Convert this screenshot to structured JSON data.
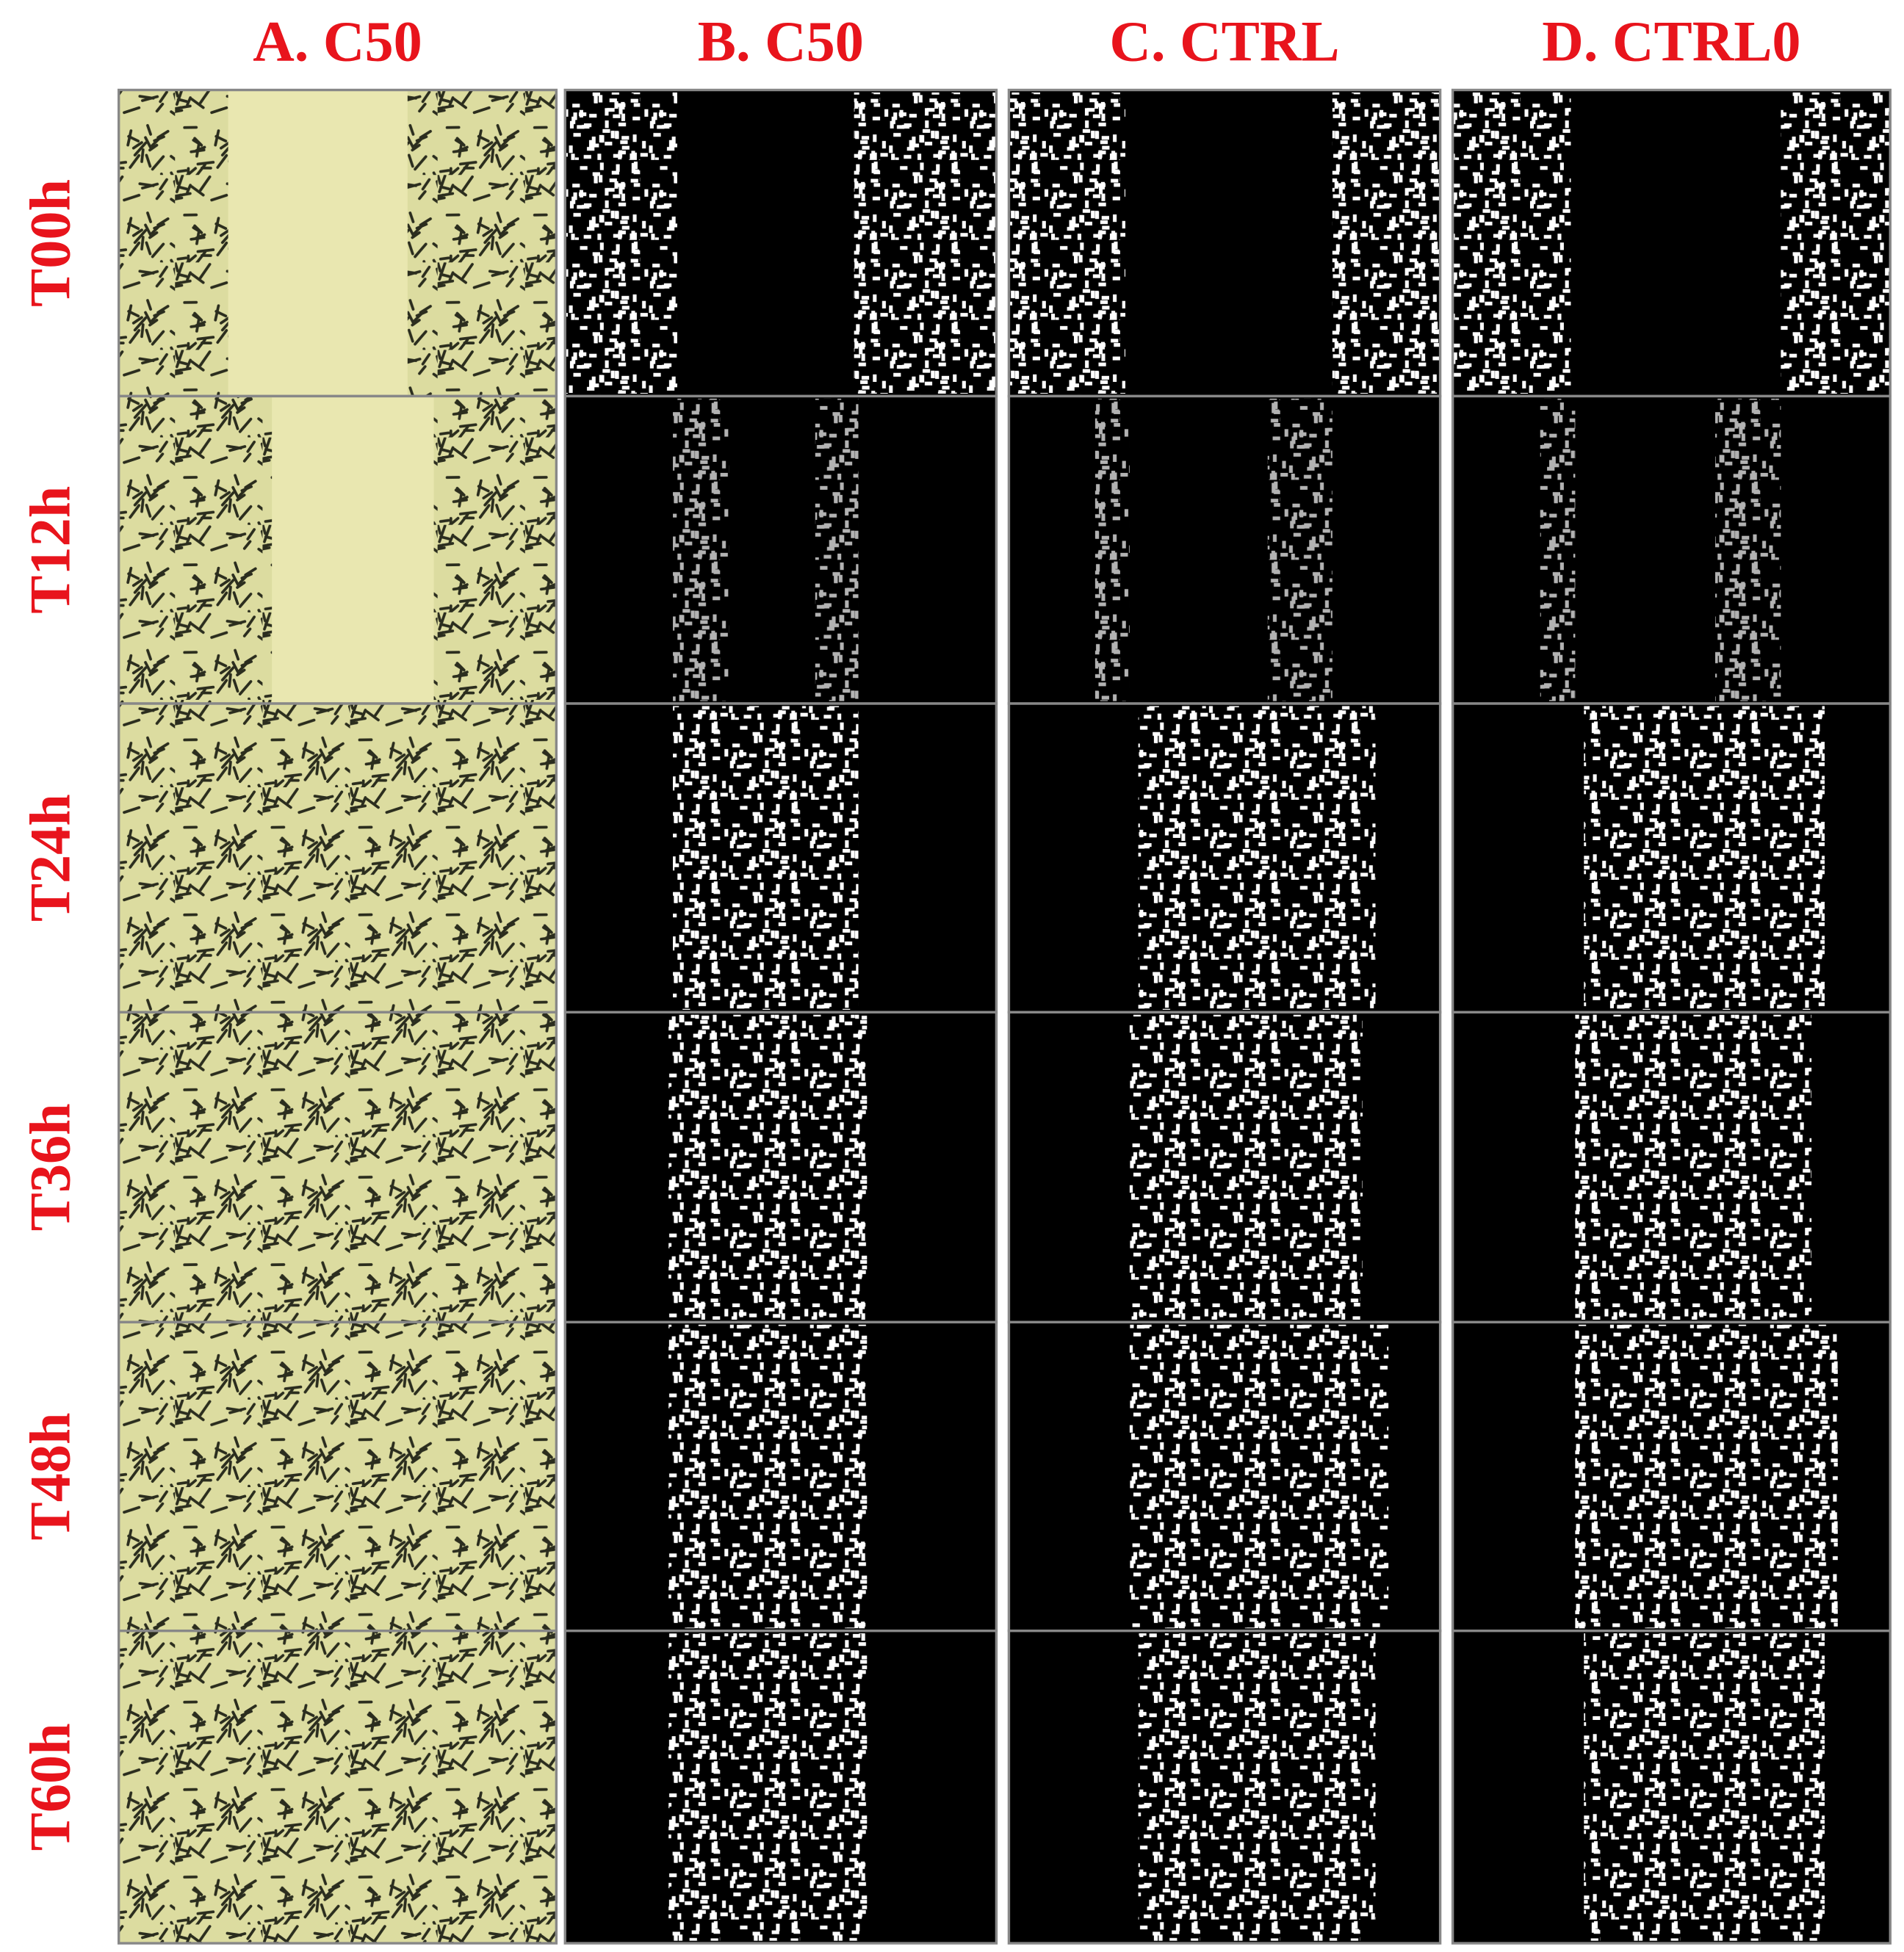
{
  "columns": [
    "A. C50",
    "B. C50",
    "C. CTRL",
    "D. CTRL0"
  ],
  "rows": [
    "T00h",
    "T12h",
    "T24h",
    "T36h",
    "T48h",
    "T60h"
  ]
}
